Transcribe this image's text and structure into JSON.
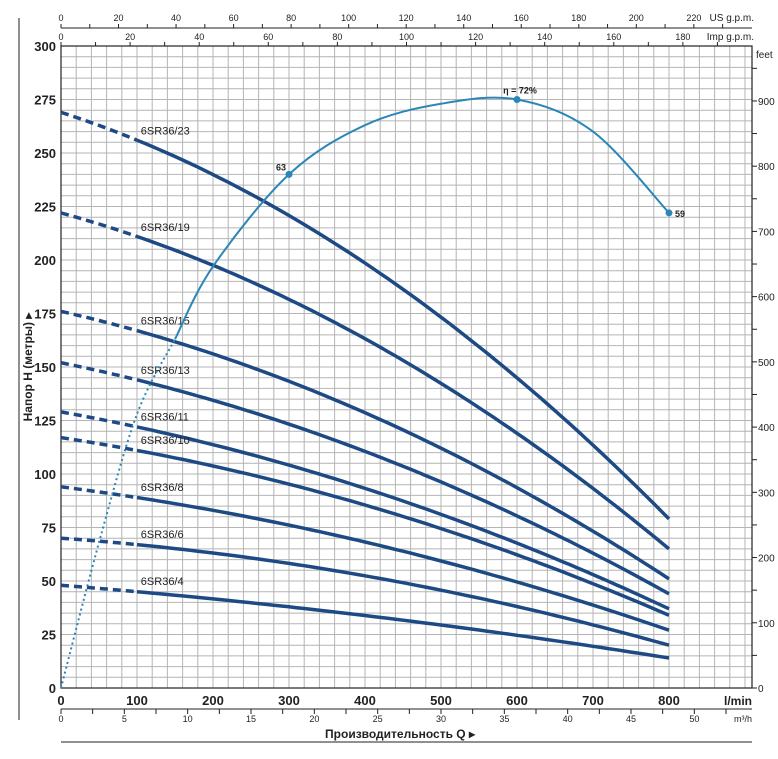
{
  "chart_data": {
    "type": "line",
    "title": "",
    "ylabel": "Напор H (метры)",
    "xlabel": "Производительность Q",
    "x_unit": "l/min",
    "xlim": [
      0,
      909
    ],
    "ylim": [
      0,
      300
    ],
    "grid": true,
    "y_ticks": [
      0,
      25,
      50,
      75,
      100,
      125,
      150,
      175,
      200,
      225,
      250,
      275,
      300
    ],
    "x_ticks": [
      0,
      100,
      200,
      300,
      400,
      500,
      600,
      700,
      800
    ],
    "secondary_axes": {
      "feet": {
        "label": "feet",
        "ticks": [
          0,
          100,
          200,
          300,
          400,
          500,
          600,
          700,
          800,
          900
        ]
      },
      "us_gpm": {
        "label": "US g.p.m.",
        "ticks": [
          0,
          20,
          40,
          60,
          80,
          100,
          120,
          140,
          160,
          180,
          200,
          220
        ]
      },
      "imp_gpm": {
        "label": "Imp g.p.m.",
        "ticks": [
          0,
          20,
          40,
          60,
          80,
          100,
          120,
          140,
          160,
          180
        ]
      },
      "m3h": {
        "label": "m³/h",
        "ticks": [
          0,
          5,
          10,
          15,
          20,
          25,
          30,
          35,
          40,
          45,
          50
        ]
      }
    },
    "series": [
      {
        "name": "6SR36/23",
        "q": [
          0,
          100,
          800
        ],
        "h": [
          269,
          256,
          79
        ]
      },
      {
        "name": "6SR36/19",
        "q": [
          0,
          100,
          800
        ],
        "h": [
          222,
          211,
          65
        ]
      },
      {
        "name": "6SR36/15",
        "q": [
          0,
          100,
          800
        ],
        "h": [
          176,
          167,
          51
        ]
      },
      {
        "name": "6SR36/13",
        "q": [
          0,
          100,
          800
        ],
        "h": [
          152,
          144,
          44
        ]
      },
      {
        "name": "6SR36/11",
        "q": [
          0,
          100,
          800
        ],
        "h": [
          129,
          122,
          37
        ]
      },
      {
        "name": "6SR36/10",
        "q": [
          0,
          100,
          800
        ],
        "h": [
          117,
          111,
          34
        ]
      },
      {
        "name": "6SR36/8",
        "q": [
          0,
          100,
          800
        ],
        "h": [
          94,
          89,
          27
        ]
      },
      {
        "name": "6SR36/6",
        "q": [
          0,
          100,
          800
        ],
        "h": [
          70,
          67,
          20
        ]
      },
      {
        "name": "6SR36/4",
        "q": [
          0,
          100,
          800
        ],
        "h": [
          48,
          45,
          14
        ]
      }
    ],
    "efficiency_curve": {
      "name": "η",
      "q": [
        0,
        50,
        100,
        150,
        200,
        300,
        400,
        500,
        600,
        700,
        800
      ],
      "h_plot": [
        0,
        68,
        128,
        163,
        197,
        240,
        263,
        273,
        275,
        260,
        222
      ],
      "markers": [
        {
          "q": 300,
          "label": "63"
        },
        {
          "q": 600,
          "label": "η = 72%"
        },
        {
          "q": 800,
          "label": "59"
        }
      ]
    },
    "colors": {
      "pump": "#1d4a84",
      "efficiency": "#2a87b8",
      "grid": "#b4b4b4"
    }
  }
}
